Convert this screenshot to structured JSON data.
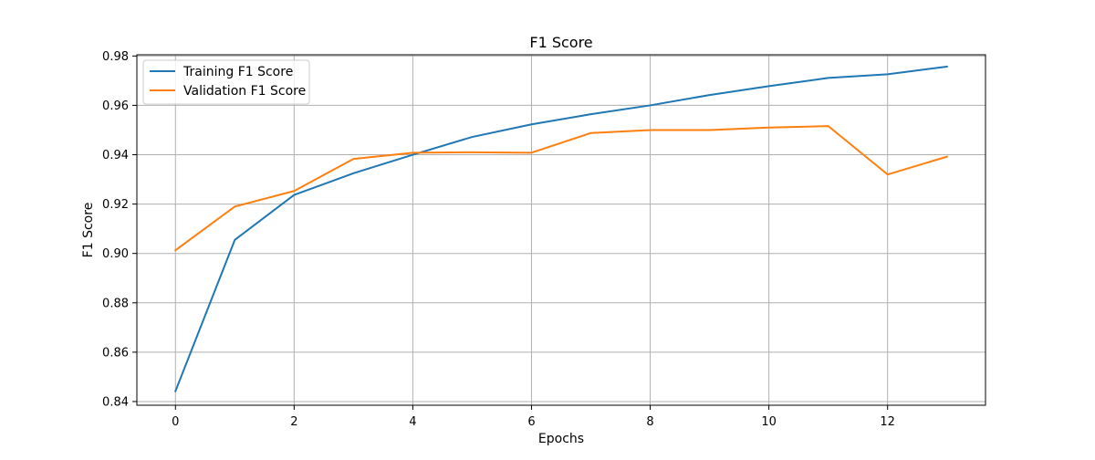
{
  "chart_data": {
    "type": "line",
    "title": "F1 Score",
    "xlabel": "Epochs",
    "ylabel": "F1 Score",
    "x": [
      0,
      1,
      2,
      3,
      4,
      5,
      6,
      7,
      8,
      9,
      10,
      11,
      12,
      13
    ],
    "xlim": [
      -0.65,
      13.65
    ],
    "ylim": [
      0.8385,
      0.9805
    ],
    "xticks": [
      0,
      2,
      4,
      6,
      8,
      10,
      12
    ],
    "yticks": [
      0.84,
      0.86,
      0.88,
      0.9,
      0.92,
      0.94,
      0.96,
      0.98
    ],
    "xtick_labels": [
      "0",
      "2",
      "4",
      "6",
      "8",
      "10",
      "12"
    ],
    "ytick_labels": [
      "0.84",
      "0.86",
      "0.88",
      "0.90",
      "0.92",
      "0.94",
      "0.96",
      "0.98"
    ],
    "grid": true,
    "legend_position": "upper-left",
    "series": [
      {
        "name": "Training F1 Score",
        "color": "#1f77b4",
        "values": [
          0.8442,
          0.9055,
          0.9237,
          0.9325,
          0.94,
          0.9472,
          0.9523,
          0.9564,
          0.96,
          0.9642,
          0.9678,
          0.9711,
          0.9726,
          0.9757
        ]
      },
      {
        "name": "Validation F1 Score",
        "color": "#ff7f0e",
        "values": [
          0.9013,
          0.919,
          0.9253,
          0.9383,
          0.9408,
          0.941,
          0.9408,
          0.9488,
          0.95,
          0.95,
          0.951,
          0.9516,
          0.932,
          0.9392
        ]
      }
    ]
  }
}
